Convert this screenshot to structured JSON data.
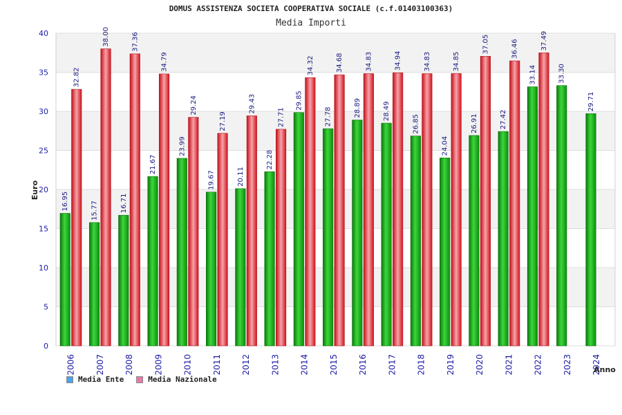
{
  "colors": {
    "ente": "#1db31d",
    "nazionale": "#e8242e",
    "legend_ente": "#4fa3e8",
    "legend_nazionale": "#e87aa8",
    "tick_text": "#1a1aa6",
    "band": "#f2f2f2"
  },
  "chart_data": {
    "type": "bar",
    "title": "DOMUS ASSISTENZA SOCIETA COOPERATIVA SOCIALE (c.f.01403100363)",
    "subtitle": "Media Importi",
    "xlabel": "Anno",
    "ylabel": "Euro",
    "ylim": [
      0,
      40
    ],
    "yticks": [
      0,
      5,
      10,
      15,
      20,
      25,
      30,
      35,
      40
    ],
    "categories": [
      "2006",
      "2007",
      "2008",
      "2009",
      "2010",
      "2011",
      "2012",
      "2013",
      "2014",
      "2015",
      "2016",
      "2017",
      "2018",
      "2019",
      "2020",
      "2021",
      "2022",
      "2023",
      "2024"
    ],
    "series": [
      {
        "name": "Media Ente",
        "values": [
          16.95,
          15.77,
          16.71,
          21.67,
          23.99,
          19.67,
          20.11,
          22.28,
          29.85,
          27.78,
          28.89,
          28.49,
          26.85,
          24.04,
          26.91,
          27.42,
          33.14,
          33.3,
          29.71
        ],
        "labels": [
          "16.95",
          "15.77",
          "16.71",
          "21.67",
          "23.99",
          "19.67",
          "20.11",
          "22.28",
          "29.85",
          "27.78",
          "28.89",
          "28.49",
          "26.85",
          "24.04",
          "26.91",
          "27.42",
          "33.14",
          "33.30",
          "29.71"
        ]
      },
      {
        "name": "Media Nazionale",
        "values": [
          32.82,
          38.0,
          37.36,
          34.79,
          29.24,
          27.19,
          29.43,
          27.71,
          34.32,
          34.68,
          34.83,
          34.94,
          34.83,
          34.85,
          37.05,
          36.46,
          37.49,
          null,
          null
        ],
        "labels": [
          "32.82",
          "38.00",
          "37.36",
          "34.79",
          "29.24",
          "27.19",
          "29.43",
          "27.71",
          "34.32",
          "34.68",
          "34.83",
          "34.94",
          "34.83",
          "34.85",
          "37.05",
          "36.46",
          "37.49",
          "",
          ""
        ]
      }
    ],
    "grid": true,
    "legend_position": "bottom-left"
  }
}
